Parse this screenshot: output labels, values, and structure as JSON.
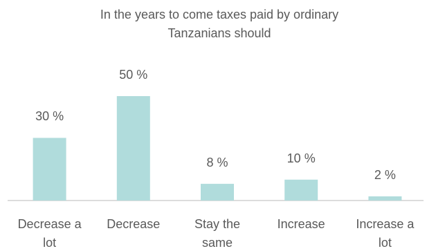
{
  "chart_data": {
    "type": "bar",
    "title": "In the years to come taxes paid by ordinary Tanzanians should",
    "categories": [
      "Decrease a lot",
      "Decrease",
      "Stay the same",
      "Increase",
      "Increase a lot"
    ],
    "values": [
      30,
      50,
      8,
      10,
      2
    ],
    "value_labels": [
      "30 %",
      "50 %",
      "8 %",
      "10 %",
      "2 %"
    ],
    "color": "#b0dcdc"
  }
}
